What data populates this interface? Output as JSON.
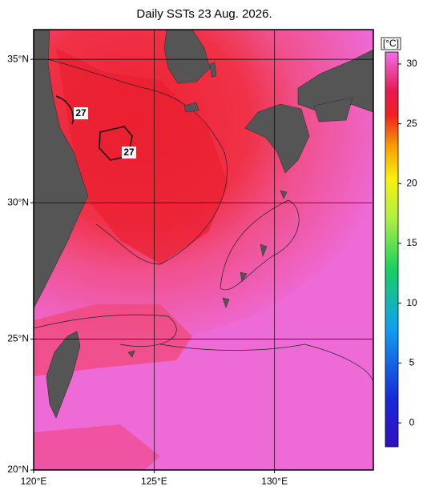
{
  "title": "Daily SSTs 23 Aug. 2026.",
  "map": {
    "lonlim": [
      120,
      134.1
    ],
    "latlim": [
      20,
      36
    ],
    "lat_ticks": [
      {
        "value": 35,
        "label": "35°N"
      },
      {
        "value": 30,
        "label": "30°N"
      },
      {
        "value": 25,
        "label": "25°N"
      },
      {
        "value": 20,
        "label": "20°N"
      }
    ],
    "lon_ticks": [
      {
        "value": 120,
        "label": "120°E"
      },
      {
        "value": 125,
        "label": "125°E"
      },
      {
        "value": 130,
        "label": "130°E"
      }
    ],
    "contour_labels": [
      "27",
      "27"
    ]
  },
  "colorbar": {
    "unit": "[°C]",
    "range": [
      -2,
      31
    ],
    "ticks": [
      0,
      5,
      10,
      15,
      20,
      25,
      30
    ]
  }
}
